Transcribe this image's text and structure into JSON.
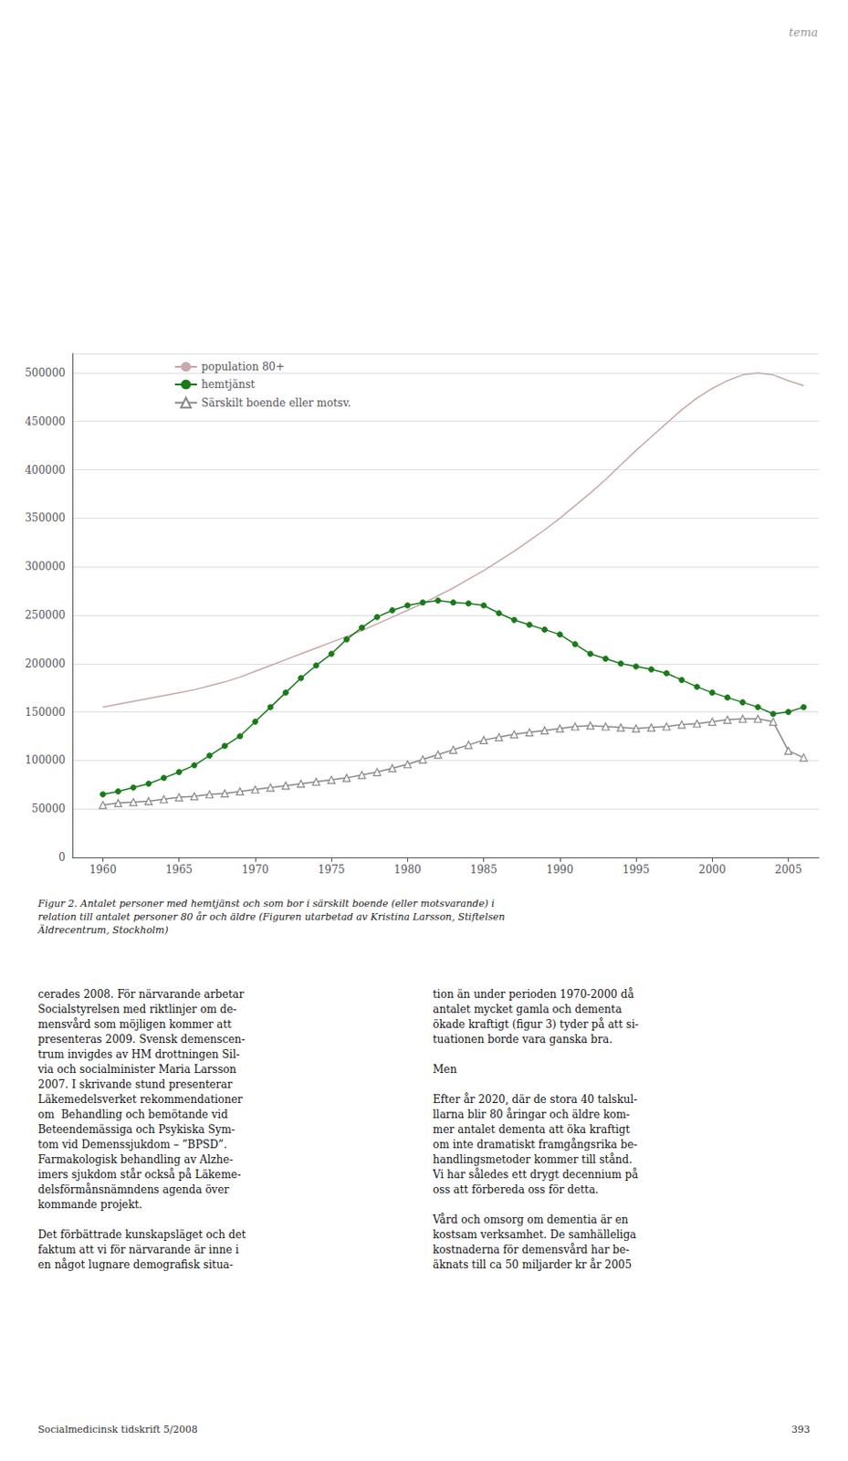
{
  "chart_data": {
    "type": "line",
    "fig_label": "tema",
    "caption": "Figur 2. Antalet personer med hemtjänst och som bor i särskilt boende (eller motsvarande) i\nrelation till antalet personer 80 år och äldre (Figuren utarbetad av Kristina Larsson, Stiftelsen\nÄldrecentrum, Stockholm)",
    "body_text": [
      "cerades 2008. För närvarande arbetar\nSocialstyrelsen med riktlinjer om de-\nmensvård som möjligen kommer att\npresenteras 2009. Svensk demenscen-\ntrum invigdes av HM drottningen Sil-\nvia och socialminister Maria Larsson\n2007. I skrivande stund presenterar\nLäkemedelsverket rekommendationer\nom  Behandling och bemötande vid\nBeteendemässiga och Psykiska Sym-\ntom vid Demenssjukdom – ”BPSD”.\nFarmakologisk behandling av Alzhe-\nimers sjukdom står också på Läkeme-\ndelsförmånsnämndens agenda över\nkommande projekt.\n\nDet förbättrade kunskapsläget och det\nfaktum att vi för närvarande är inne i\nen något lugnare demografisk situa-",
      "tion än under perioden 1970-2000 då\nantalet mycket gamla och dementa\nökade kraftigt (figur 3) tyder på att si-\ntuationen borde vara ganska bra.\n\nMen\n\nEfter år 2020, där de stora 40 talskul-\nllarna blir 80 åringar och äldre kom-\nmer antalet dementa att öka kraftigt\nom inte dramatiskt framgångsrika be-\nhandlingsmetoder kommer till stånd.\nVi har således ett drygt decennium på\noss att förbereda oss för detta.\n\nVård och omsorg om dementia är en\nkostsam verksamhet. De samhälleliga\nkostnaderna för demensvård har be-\näknats till ca 50 miljarder kr år 2005"
    ],
    "footer": [
      "Socialmedicinsk tidskrift 5/2008",
      "393"
    ],
    "x": [
      1960,
      1961,
      1962,
      1963,
      1964,
      1965,
      1966,
      1967,
      1968,
      1969,
      1970,
      1971,
      1972,
      1973,
      1974,
      1975,
      1976,
      1977,
      1978,
      1979,
      1980,
      1981,
      1982,
      1983,
      1984,
      1985,
      1986,
      1987,
      1988,
      1989,
      1990,
      1991,
      1992,
      1993,
      1994,
      1995,
      1996,
      1997,
      1998,
      1999,
      2000,
      2001,
      2002,
      2003,
      2004,
      2005,
      2006
    ],
    "series": [
      {
        "name": "population 80+",
        "color": "#c8a8a8",
        "values": [
          155000,
          158000,
          161000,
          164000,
          167000,
          170000,
          173000,
          177000,
          181000,
          186000,
          192000,
          198000,
          204000,
          210000,
          216000,
          222000,
          228000,
          234000,
          241000,
          248000,
          255000,
          262000,
          270000,
          278000,
          287000,
          296000,
          306000,
          316000,
          327000,
          338000,
          350000,
          363000,
          376000,
          390000,
          405000,
          420000,
          434000,
          448000,
          462000,
          474000,
          484000,
          492000,
          498000,
          500000,
          498000,
          492000,
          487000
        ]
      },
      {
        "name": "hemtjänst",
        "color": "#1a7a1a",
        "marker": "circle",
        "values": [
          65000,
          68000,
          72000,
          76000,
          82000,
          88000,
          95000,
          105000,
          115000,
          125000,
          140000,
          155000,
          170000,
          185000,
          198000,
          210000,
          225000,
          237000,
          248000,
          255000,
          260000,
          263000,
          265000,
          263000,
          262000,
          260000,
          252000,
          245000,
          240000,
          235000,
          230000,
          220000,
          210000,
          205000,
          200000,
          197000,
          194000,
          190000,
          183000,
          176000,
          170000,
          165000,
          160000,
          155000,
          148000,
          150000,
          155000
        ]
      },
      {
        "name": "Särskilt boende eller motsv.",
        "color": "#888888",
        "marker": "triangle-open",
        "values": [
          54000,
          56000,
          57000,
          58000,
          60000,
          62000,
          63000,
          65000,
          66000,
          68000,
          70000,
          72000,
          74000,
          76000,
          78000,
          80000,
          82000,
          85000,
          88000,
          92000,
          96000,
          101000,
          106000,
          111000,
          116000,
          121000,
          124000,
          127000,
          129000,
          131000,
          133000,
          135000,
          136000,
          135000,
          134000,
          133000,
          134000,
          135000,
          137000,
          138000,
          140000,
          142000,
          143000,
          143000,
          140000,
          110000,
          103000
        ]
      }
    ],
    "xlim": [
      1958,
      2007
    ],
    "xticks": [
      1960,
      1965,
      1970,
      1975,
      1980,
      1985,
      1990,
      1995,
      2000,
      2005
    ],
    "ylim": [
      0,
      520000
    ],
    "yticks": [
      0,
      50000,
      100000,
      150000,
      200000,
      250000,
      300000,
      350000,
      400000,
      450000,
      500000
    ],
    "grid": true,
    "legend": "upper left"
  }
}
